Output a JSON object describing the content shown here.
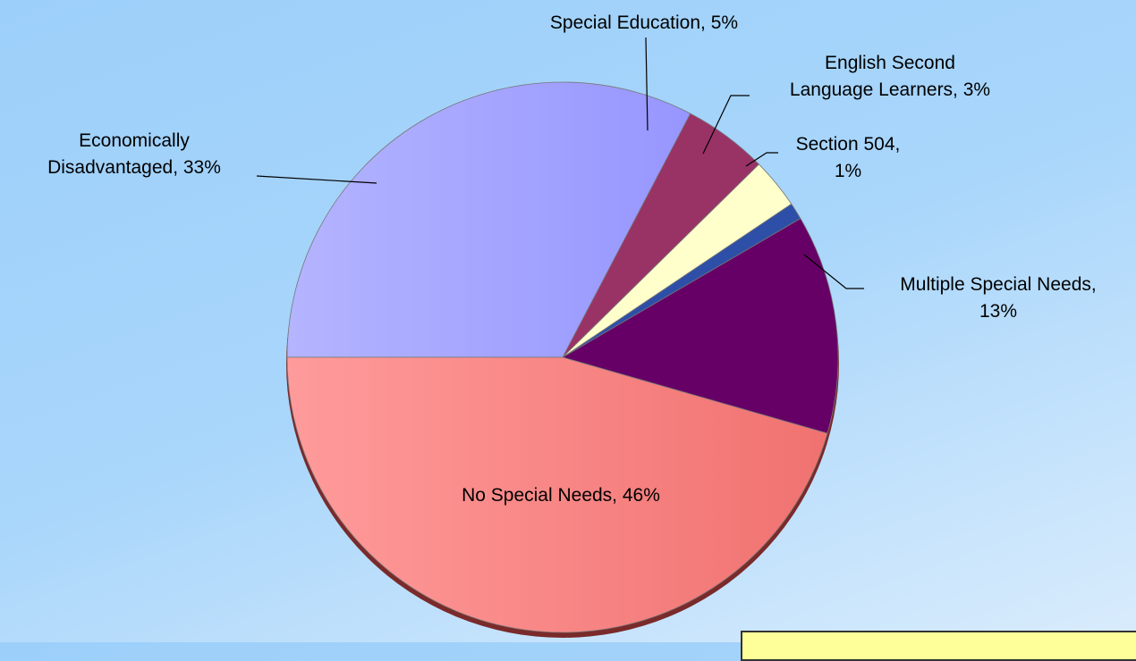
{
  "chart_data": {
    "type": "pie",
    "title": "",
    "slices": [
      {
        "label": "No Special Needs",
        "value": 46,
        "display": "No Special Needs, 46%",
        "color": "#f47c7c"
      },
      {
        "label": "Economically Disadvantaged",
        "value": 33,
        "display_lines": [
          "Economically",
          "Disadvantaged, 33%"
        ],
        "color": "#a3a3ff"
      },
      {
        "label": "Special Education",
        "value": 5,
        "display": "Special Education, 5%",
        "color": "#993366"
      },
      {
        "label": "English Second Language Learners",
        "value": 3,
        "display_lines": [
          "English Second",
          "Language Learners, 3%"
        ],
        "color": "#ffffcc"
      },
      {
        "label": "Section 504",
        "value": 1,
        "display_lines": [
          "Section 504,",
          "1%"
        ],
        "color": "#2e4fa8"
      },
      {
        "label": "Multiple Special Needs",
        "value": 13,
        "display_lines": [
          "Multiple Special Needs,",
          "13%"
        ],
        "color": "#660066"
      }
    ],
    "legend": "none"
  }
}
